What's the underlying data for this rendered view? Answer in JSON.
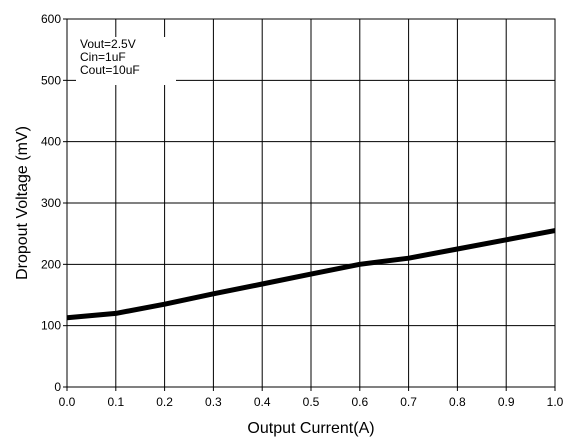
{
  "chart_data": {
    "type": "line",
    "xlabel": "Output Current(A)",
    "ylabel": "Dropout Voltage (mV)",
    "xlim": [
      0.0,
      1.0
    ],
    "ylim": [
      0,
      600
    ],
    "xticks": [
      "0.0",
      "0.1",
      "0.2",
      "0.3",
      "0.4",
      "0.5",
      "0.6",
      "0.7",
      "0.8",
      "0.9",
      "1.0"
    ],
    "yticks": [
      "0",
      "100",
      "200",
      "300",
      "400",
      "500",
      "600"
    ],
    "grid": true,
    "annotations": [
      "Vout=2.5V",
      "Cin=1uF",
      "Cout=10uF"
    ],
    "series": [
      {
        "x": [
          0.0,
          0.1,
          0.2,
          0.3,
          0.4,
          0.5,
          0.6,
          0.7,
          0.8,
          0.9,
          1.0
        ],
        "values": [
          113,
          120,
          135,
          152,
          168,
          184,
          200,
          210,
          225,
          240,
          255
        ],
        "color": "#000000"
      }
    ]
  }
}
